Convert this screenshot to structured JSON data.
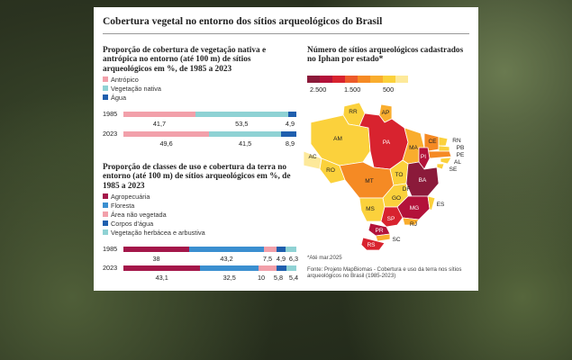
{
  "title": "Cobertura vegetal no entorno dos sítios arqueológicos do Brasil",
  "colors": {
    "antropico": "#f2a0aa",
    "veg_nativa": "#8fd2d4",
    "agua": "#1f5fae",
    "agropecuaria": "#a4174a",
    "floresta": "#3b8fd0",
    "nao_vegetada": "#f2a0aa",
    "corpos_agua": "#1f5fae",
    "herbacea": "#8fd2d4"
  },
  "chart_data": [
    {
      "type": "bar",
      "stacked": true,
      "orientation": "horizontal",
      "title": "Proporção de cobertura de vegetação nativa e antrópica no entorno (até 100 m) de sítios arqueológicos em %, de 1985 a 2023",
      "categories": [
        "1985",
        "2023"
      ],
      "series": [
        {
          "name": "Antrópico",
          "values": [
            41.7,
            49.6
          ],
          "labels": [
            "41,7",
            "49,6"
          ]
        },
        {
          "name": "Vegetação nativa",
          "values": [
            53.5,
            41.5
          ],
          "labels": [
            "53,5",
            "41,5"
          ]
        },
        {
          "name": "Água",
          "values": [
            4.9,
            8.9
          ],
          "labels": [
            "4,9",
            "8,9"
          ]
        }
      ],
      "legend": "top-left"
    },
    {
      "type": "bar",
      "stacked": true,
      "orientation": "horizontal",
      "title": "Proporção de classes de uso e cobertura da terra no entorno (até 100 m) de sítios arqueológicos em %, de 1985 a 2023",
      "categories": [
        "1985",
        "2023"
      ],
      "series": [
        {
          "name": "Agropecuária",
          "values": [
            38,
            43.1
          ],
          "labels": [
            "38",
            "43,1"
          ]
        },
        {
          "name": "Floresta",
          "values": [
            43.2,
            32.5
          ],
          "labels": [
            "43,2",
            "32,5"
          ]
        },
        {
          "name": "Área não vegetada",
          "values": [
            7.5,
            10
          ],
          "labels": [
            "7,5",
            "10"
          ]
        },
        {
          "name": "Corpos d'água",
          "values": [
            4.9,
            5.8
          ],
          "labels": [
            "4,9",
            "5,8"
          ]
        },
        {
          "name": "Vegetação herbácea e arbustiva",
          "values": [
            6.3,
            5.4
          ],
          "labels": [
            "6,3",
            "5,4"
          ]
        }
      ],
      "legend": "top-left"
    },
    {
      "type": "heatmap",
      "title": "Número de sítios arqueológicos cadastrados no Iphan por estado*",
      "scale_labels": [
        "2.500",
        "1.500",
        "500"
      ],
      "scale_colors": [
        "#8b1a3a",
        "#b3123a",
        "#d8232f",
        "#ec5a2a",
        "#f58a24",
        "#f9ad2e",
        "#fbd13c",
        "#fde99a"
      ],
      "states": [
        "RR",
        "AP",
        "AM",
        "PA",
        "MA",
        "CE",
        "RN",
        "PB",
        "PE",
        "AL",
        "SE",
        "PI",
        "AC",
        "RO",
        "TO",
        "BA",
        "MT",
        "DF",
        "GO",
        "MG",
        "ES",
        "MS",
        "SP",
        "RJ",
        "PR",
        "SC",
        "RS"
      ]
    }
  ],
  "note": "*Até mar.2025",
  "source": "Fonte: Projeto MapBiomas - Cobertura e uso da terra nos sítios arqueológicos no Brasil (1985-2023)"
}
